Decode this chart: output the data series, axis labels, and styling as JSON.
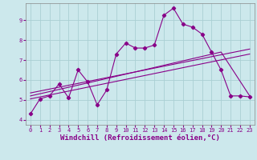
{
  "background_color": "#cce8ec",
  "grid_color": "#aacfd4",
  "line_color": "#880088",
  "xlabel": "Windchill (Refroidissement éolien,°C)",
  "xlabel_fontsize": 6.5,
  "yticks": [
    4,
    5,
    6,
    7,
    8,
    9
  ],
  "xticks": [
    0,
    1,
    2,
    3,
    4,
    5,
    6,
    7,
    8,
    9,
    10,
    11,
    12,
    13,
    14,
    15,
    16,
    17,
    18,
    19,
    20,
    21,
    22,
    23
  ],
  "xlim": [
    -0.5,
    23.5
  ],
  "ylim": [
    3.75,
    9.85
  ],
  "scatter_x": [
    0,
    1,
    2,
    3,
    4,
    5,
    6,
    7,
    8,
    9,
    10,
    11,
    12,
    13,
    14,
    15,
    16,
    17,
    18,
    19,
    20,
    21,
    22,
    23
  ],
  "scatter_y": [
    4.3,
    5.05,
    5.2,
    5.8,
    5.1,
    6.5,
    5.9,
    4.75,
    5.5,
    7.3,
    7.85,
    7.6,
    7.6,
    7.75,
    9.25,
    9.6,
    8.8,
    8.65,
    8.3,
    7.4,
    6.5,
    5.2,
    5.2,
    5.15
  ],
  "line1_x": [
    0,
    23
  ],
  "line1_y": [
    5.05,
    7.3
  ],
  "line2_x": [
    0,
    23
  ],
  "line2_y": [
    5.35,
    7.55
  ],
  "line3_x": [
    0,
    6,
    20,
    23
  ],
  "line3_y": [
    5.2,
    5.85,
    7.4,
    5.2
  ],
  "tick_fontsize": 5.0,
  "marker_size": 2.2,
  "line_width": 0.8
}
